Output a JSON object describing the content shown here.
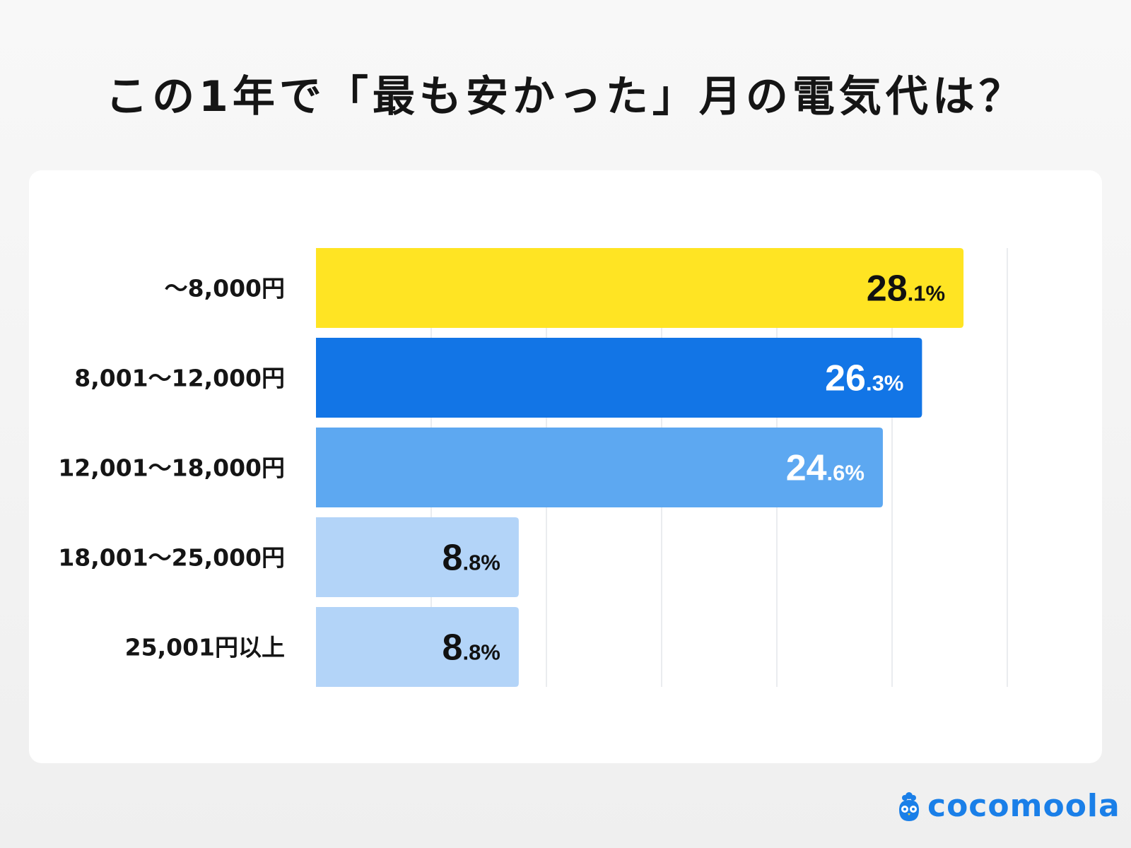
{
  "chart_data": {
    "type": "bar",
    "orientation": "horizontal",
    "title": "この1年で「最も安かった」月の電気代は？",
    "categories": [
      "〜8,000円",
      "8,001〜12,000円",
      "12,001〜18,000円",
      "18,001〜25,000円",
      "25,001円以上"
    ],
    "values": [
      28.1,
      26.3,
      24.6,
      8.8,
      8.8
    ],
    "value_labels": [
      {
        "int": "28",
        "dec": ".1%"
      },
      {
        "int": "26",
        "dec": ".3%"
      },
      {
        "int": "24",
        "dec": ".6%"
      },
      {
        "int": "8",
        "dec": ".8%"
      },
      {
        "int": "8",
        "dec": ".8%"
      }
    ],
    "bar_colors": [
      "#FFE423",
      "#1275E6",
      "#5DA8F1",
      "#B3D4F8",
      "#B3D4F8"
    ],
    "label_colors": [
      "#111111",
      "#ffffff",
      "#ffffff",
      "#111111",
      "#111111"
    ],
    "xlim": [
      0,
      30
    ],
    "grid_ticks": [
      5,
      10,
      15,
      20,
      25,
      30
    ],
    "grid": true,
    "xlabel": "",
    "ylabel": ""
  },
  "brand": {
    "name": "cocomoola",
    "color": "#1A7FE8"
  }
}
